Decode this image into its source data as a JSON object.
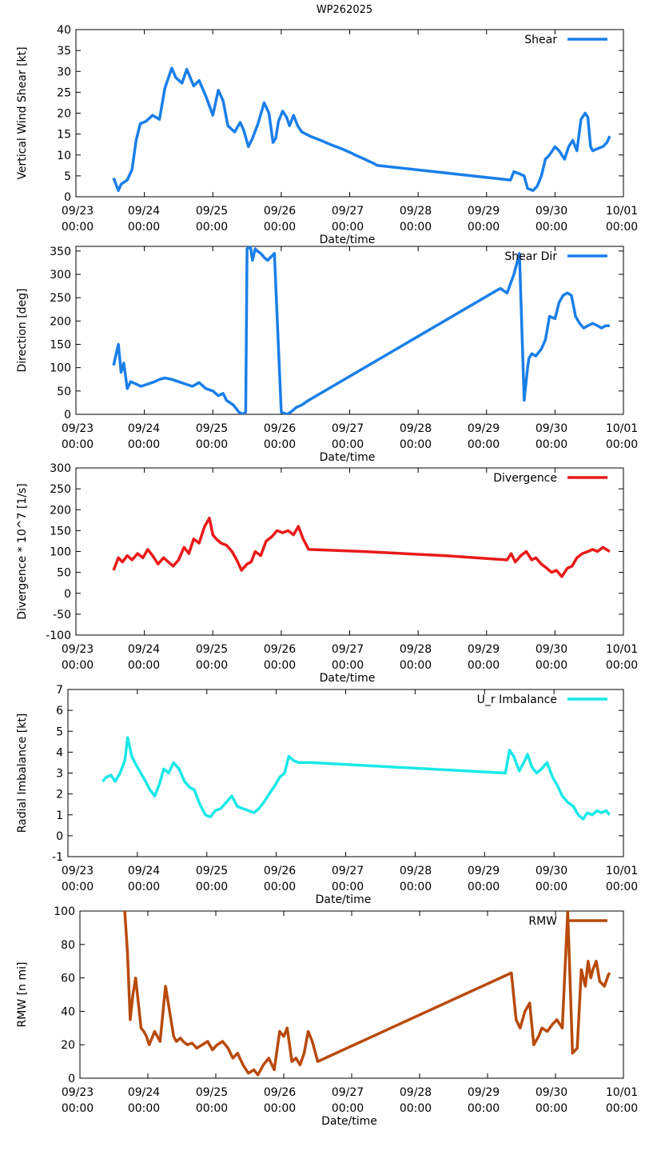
{
  "figure_title": "WP262025",
  "x_tick_labels": [
    [
      "09/23",
      "00:00"
    ],
    [
      "09/24",
      "00:00"
    ],
    [
      "09/25",
      "00:00"
    ],
    [
      "09/26",
      "00:00"
    ],
    [
      "09/27",
      "00:00"
    ],
    [
      "09/28",
      "00:00"
    ],
    [
      "09/29",
      "00:00"
    ],
    [
      "09/30",
      "00:00"
    ],
    [
      "10/01",
      "00:00"
    ]
  ],
  "chart_data": [
    {
      "type": "line",
      "title": "WP262025",
      "xlabel": "Date/time",
      "ylabel": "Vertical Wind Shear [kt]",
      "xlim": [
        0,
        8
      ],
      "ylim": [
        0,
        40
      ],
      "y_ticks": [
        0,
        5,
        10,
        15,
        20,
        25,
        30,
        35,
        40
      ],
      "legend": "Shear",
      "legend_position": "top-right",
      "color": "#1a7fe8",
      "x": [
        0.55,
        0.62,
        0.66,
        0.75,
        0.82,
        0.88,
        0.94,
        1.02,
        1.12,
        1.22,
        1.3,
        1.4,
        1.46,
        1.55,
        1.62,
        1.72,
        1.8,
        1.9,
        2.0,
        2.08,
        2.15,
        2.22,
        2.32,
        2.4,
        2.45,
        2.52,
        2.58,
        2.66,
        2.75,
        2.82,
        2.88,
        2.92,
        2.96,
        3.02,
        3.08,
        3.12,
        3.18,
        3.24,
        3.3,
        3.36,
        3.42,
        3.5,
        3.58,
        3.65,
        3.72,
        3.8,
        3.88,
        3.95,
        4.02,
        4.08,
        4.15,
        4.22,
        4.28,
        4.35,
        4.4,
        6.35,
        6.4,
        6.48,
        6.55,
        6.6,
        6.68,
        6.74,
        6.8,
        6.86,
        6.92,
        7.0,
        7.06,
        7.14,
        7.2,
        7.26,
        7.32,
        7.38,
        7.44,
        7.48,
        7.52,
        7.55,
        7.62,
        7.7,
        7.76,
        7.8
      ],
      "values": [
        4.5,
        1.5,
        3.0,
        4.0,
        6.5,
        13.5,
        17.5,
        18.0,
        19.5,
        18.5,
        26.0,
        30.8,
        28.5,
        27.2,
        30.5,
        26.5,
        27.8,
        24.0,
        19.5,
        25.5,
        23.0,
        17.0,
        15.5,
        17.8,
        16.0,
        12.0,
        14.0,
        17.5,
        22.5,
        20.0,
        13.0,
        14.0,
        18.0,
        20.5,
        19.0,
        17.0,
        19.5,
        17.0,
        15.5,
        15.0,
        14.5,
        14.0,
        13.5,
        13.0,
        12.5,
        12.0,
        11.5,
        11.0,
        10.5,
        10.0,
        9.5,
        9.0,
        8.5,
        8.0,
        7.5,
        4.0,
        6.0,
        5.5,
        5.0,
        2.0,
        1.5,
        2.5,
        5.0,
        9.0,
        10.0,
        12.0,
        11.0,
        9.0,
        12.0,
        13.5,
        11.0,
        18.5,
        20.0,
        19.0,
        12.0,
        11.0,
        11.5,
        12.0,
        13.0,
        14.5
      ]
    },
    {
      "type": "line",
      "title": "",
      "xlabel": "Date/time",
      "ylabel": "Direction [deg]",
      "xlim": [
        0,
        8
      ],
      "ylim": [
        0,
        360
      ],
      "y_ticks": [
        0,
        50,
        100,
        150,
        200,
        250,
        300,
        350
      ],
      "legend": "Shear Dir",
      "legend_position": "top-right",
      "color": "#1a7fe8",
      "x": [
        0.55,
        0.62,
        0.66,
        0.7,
        0.75,
        0.8,
        0.88,
        0.95,
        1.05,
        1.15,
        1.22,
        1.3,
        1.4,
        1.5,
        1.6,
        1.7,
        1.8,
        1.9,
        2.0,
        2.08,
        2.15,
        2.2,
        2.3,
        2.38,
        2.44,
        2.48,
        2.5,
        2.55,
        2.58,
        2.62,
        2.65,
        2.7,
        2.76,
        2.8,
        2.9,
        3.0,
        3.08,
        3.14,
        3.18,
        3.22,
        3.3,
        3.4,
        6.2,
        6.3,
        6.4,
        6.48,
        6.55,
        6.6,
        6.62,
        6.66,
        6.72,
        6.8,
        6.86,
        6.92,
        7.0,
        7.06,
        7.12,
        7.18,
        7.24,
        7.3,
        7.36,
        7.42,
        7.48,
        7.55,
        7.62,
        7.68,
        7.74,
        7.8
      ],
      "values": [
        105,
        150,
        90,
        110,
        55,
        70,
        65,
        60,
        65,
        70,
        75,
        78,
        75,
        70,
        65,
        60,
        68,
        55,
        50,
        40,
        45,
        30,
        20,
        5,
        0,
        5,
        355,
        360,
        330,
        355,
        350,
        345,
        335,
        330,
        345,
        5,
        0,
        5,
        10,
        15,
        20,
        30,
        270,
        260,
        300,
        345,
        30,
        100,
        120,
        130,
        125,
        140,
        160,
        210,
        205,
        240,
        255,
        260,
        255,
        210,
        195,
        185,
        190,
        195,
        190,
        185,
        190,
        190
      ]
    },
    {
      "type": "line",
      "title": "",
      "xlabel": "Date/time",
      "ylabel": "Divergence * 10^7 [1/s]",
      "xlim": [
        0,
        8
      ],
      "ylim": [
        -100,
        300
      ],
      "y_ticks": [
        -100,
        -50,
        0,
        50,
        100,
        150,
        200,
        250,
        300
      ],
      "legend": "Divergence",
      "legend_position": "top-right",
      "color": "#e81a1a",
      "x": [
        0.55,
        0.62,
        0.68,
        0.75,
        0.82,
        0.9,
        0.98,
        1.05,
        1.12,
        1.2,
        1.28,
        1.35,
        1.42,
        1.5,
        1.58,
        1.65,
        1.72,
        1.8,
        1.88,
        1.95,
        2.0,
        2.05,
        2.12,
        2.2,
        2.28,
        2.35,
        2.42,
        2.5,
        2.56,
        2.62,
        2.7,
        2.78,
        2.86,
        2.94,
        3.02,
        3.1,
        3.18,
        3.25,
        3.32,
        3.4,
        4.2,
        4.8,
        5.4,
        6.3,
        6.36,
        6.42,
        6.5,
        6.58,
        6.66,
        6.72,
        6.8,
        6.88,
        6.95,
        7.02,
        7.1,
        7.18,
        7.25,
        7.32,
        7.4,
        7.48,
        7.55,
        7.62,
        7.7,
        7.8
      ],
      "values": [
        55,
        85,
        75,
        90,
        80,
        95,
        85,
        105,
        90,
        70,
        85,
        75,
        65,
        80,
        110,
        95,
        130,
        120,
        160,
        180,
        140,
        130,
        120,
        115,
        100,
        80,
        55,
        70,
        75,
        100,
        90,
        125,
        135,
        150,
        145,
        150,
        140,
        160,
        130,
        105,
        100,
        95,
        90,
        80,
        95,
        75,
        90,
        100,
        80,
        85,
        70,
        60,
        50,
        55,
        40,
        60,
        65,
        85,
        95,
        100,
        105,
        100,
        110,
        100
      ]
    },
    {
      "type": "line",
      "title": "",
      "xlabel": "Date/time",
      "ylabel": "Radial Imbalance [kt]",
      "xlim": [
        0,
        8
      ],
      "ylim": [
        -1,
        7
      ],
      "y_ticks": [
        -1,
        0,
        1,
        2,
        3,
        4,
        5,
        6,
        7
      ],
      "legend": "U_r Imbalance",
      "legend_position": "top-right",
      "color": "#1ae8e8",
      "x": [
        0.5,
        0.55,
        0.62,
        0.68,
        0.75,
        0.82,
        0.86,
        0.92,
        0.98,
        1.05,
        1.12,
        1.18,
        1.25,
        1.32,
        1.38,
        1.45,
        1.52,
        1.6,
        1.68,
        1.76,
        1.82,
        1.9,
        1.98,
        2.05,
        2.12,
        2.2,
        2.28,
        2.36,
        2.44,
        2.52,
        2.6,
        2.68,
        2.75,
        2.82,
        2.9,
        2.98,
        3.05,
        3.12,
        3.18,
        3.25,
        3.32,
        3.4,
        3.5,
        6.3,
        6.36,
        6.42,
        6.5,
        6.58,
        6.62,
        6.68,
        6.75,
        6.82,
        6.9,
        6.98,
        7.05,
        7.12,
        7.2,
        7.28,
        7.35,
        7.42,
        7.48,
        7.55,
        7.62,
        7.68,
        7.75,
        7.8
      ],
      "values": [
        2.6,
        2.8,
        2.9,
        2.6,
        3.0,
        3.6,
        4.7,
        3.8,
        3.4,
        3.0,
        2.6,
        2.2,
        1.9,
        2.5,
        3.2,
        3.0,
        3.5,
        3.2,
        2.6,
        2.3,
        2.2,
        1.5,
        1.0,
        0.9,
        1.2,
        1.3,
        1.6,
        1.9,
        1.4,
        1.3,
        1.2,
        1.1,
        1.3,
        1.6,
        2.0,
        2.4,
        2.8,
        3.0,
        3.8,
        3.6,
        3.5,
        3.5,
        3.5,
        3.0,
        4.1,
        3.8,
        3.1,
        3.6,
        3.9,
        3.3,
        3.0,
        3.2,
        3.5,
        2.8,
        2.4,
        1.9,
        1.6,
        1.4,
        1.0,
        0.8,
        1.1,
        1.0,
        1.2,
        1.1,
        1.2,
        1.0
      ]
    },
    {
      "type": "line",
      "title": "",
      "xlabel": "Date/time",
      "ylabel": "RMW [n mi]",
      "xlim": [
        0,
        8
      ],
      "ylim": [
        0,
        100
      ],
      "y_ticks": [
        0,
        20,
        40,
        60,
        80,
        100
      ],
      "legend": "RMW",
      "legend_position": "top-right",
      "color": "#b84a0a",
      "x": [
        0.66,
        0.7,
        0.74,
        0.78,
        0.82,
        0.86,
        0.9,
        0.94,
        0.98,
        1.02,
        1.1,
        1.18,
        1.26,
        1.32,
        1.38,
        1.42,
        1.48,
        1.52,
        1.58,
        1.65,
        1.72,
        1.8,
        1.88,
        1.95,
        2.02,
        2.1,
        2.18,
        2.25,
        2.32,
        2.4,
        2.48,
        2.56,
        2.62,
        2.7,
        2.78,
        2.86,
        2.94,
        3.0,
        3.05,
        3.12,
        3.18,
        3.24,
        3.3,
        3.36,
        3.42,
        3.5,
        6.35,
        6.42,
        6.48,
        6.55,
        6.62,
        6.68,
        6.75,
        6.8,
        6.88,
        6.95,
        7.02,
        7.1,
        7.18,
        7.25,
        7.32,
        7.38,
        7.44,
        7.48,
        7.52,
        7.55,
        7.6,
        7.65,
        7.72,
        7.78,
        7.8
      ],
      "values": [
        100,
        75,
        35,
        50,
        60,
        45,
        30,
        28,
        25,
        20,
        28,
        22,
        55,
        40,
        25,
        22,
        24,
        22,
        20,
        21,
        18,
        20,
        22,
        17,
        20,
        22,
        18,
        12,
        15,
        8,
        3,
        5,
        2,
        8,
        12,
        5,
        28,
        25,
        30,
        10,
        12,
        8,
        15,
        28,
        22,
        10,
        63,
        35,
        30,
        40,
        45,
        20,
        25,
        30,
        28,
        32,
        35,
        30,
        100,
        15,
        18,
        65,
        55,
        70,
        60,
        65,
        70,
        58,
        55,
        62,
        63
      ]
    }
  ]
}
